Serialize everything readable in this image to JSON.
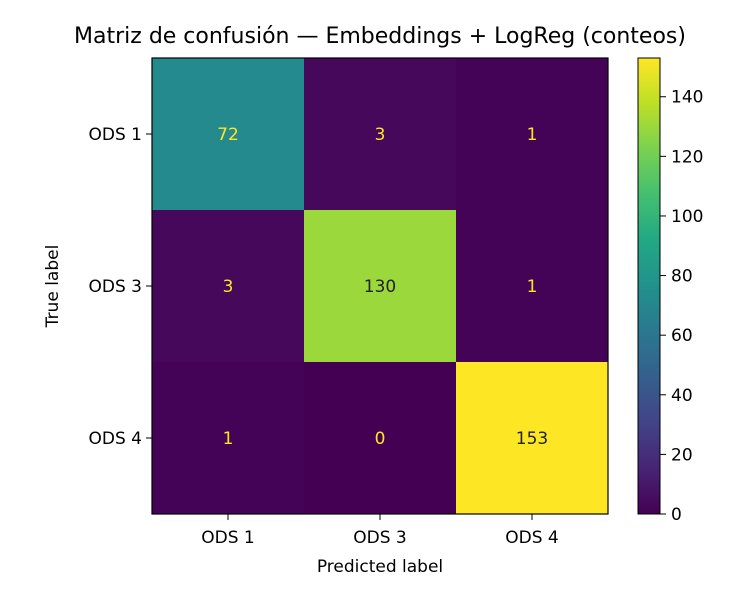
{
  "chart_data": {
    "type": "heatmap",
    "title": "Matriz de confusión — Embeddings + LogReg (conteos)",
    "xlabel": "Predicted label",
    "ylabel": "True label",
    "x_categories": [
      "ODS 1",
      "ODS 3",
      "ODS 4"
    ],
    "y_categories": [
      "ODS 1",
      "ODS 3",
      "ODS 4"
    ],
    "values": [
      [
        72,
        3,
        1
      ],
      [
        3,
        130,
        1
      ],
      [
        1,
        0,
        153
      ]
    ],
    "colormap": "viridis",
    "color_range": [
      0,
      153
    ],
    "colorbar_ticks": [
      "0",
      "20",
      "40",
      "60",
      "80",
      "100",
      "120",
      "140"
    ],
    "colorbar_tick_values": [
      0,
      20,
      40,
      60,
      80,
      100,
      120,
      140
    ],
    "text_color_light": "#fde725",
    "text_color_dark": "#222222"
  }
}
